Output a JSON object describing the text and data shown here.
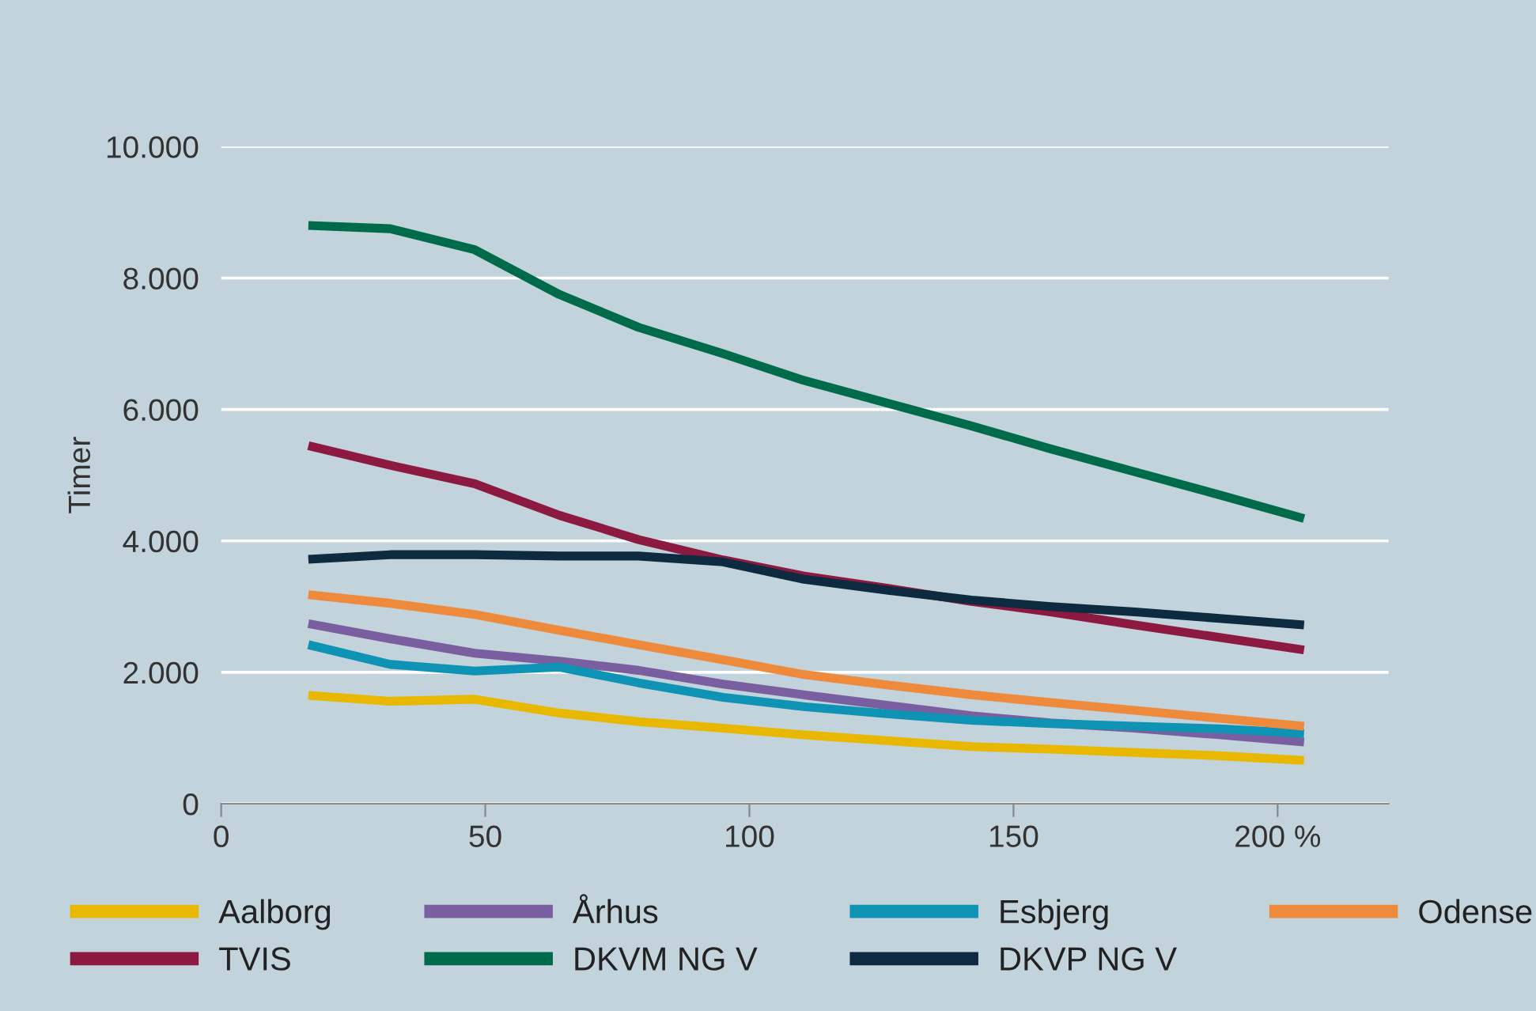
{
  "chart_data": {
    "type": "line",
    "ylabel": "Timer",
    "x": [
      16.5,
      32,
      48,
      64,
      79,
      95,
      110,
      126,
      142,
      157,
      173,
      189,
      205
    ],
    "xlim": [
      0,
      221
    ],
    "xticks": [
      0,
      50,
      100,
      150,
      {
        "value": 200,
        "label": "200 %"
      }
    ],
    "ylim": [
      0,
      10000
    ],
    "yticks": [
      0,
      {
        "value": 2000,
        "label": "2.000"
      },
      {
        "value": 4000,
        "label": "4.000"
      },
      {
        "value": 6000,
        "label": "6.000"
      },
      {
        "value": 8000,
        "label": "8.000"
      },
      {
        "value": 10000,
        "label": "10.000"
      }
    ],
    "grid": "y",
    "legend": "bottom",
    "marker": "none",
    "line_style": "solid",
    "series": [
      {
        "name": "Aalborg",
        "color": "#e8b800",
        "values": [
          1650,
          1560,
          1590,
          1380,
          1250,
          1150,
          1050,
          960,
          870,
          830,
          780,
          730,
          660
        ]
      },
      {
        "name": "Århus",
        "color": "#7a5fa0",
        "values": [
          2740,
          2510,
          2290,
          2170,
          2030,
          1820,
          1660,
          1500,
          1340,
          1230,
          1150,
          1050,
          940
        ]
      },
      {
        "name": "Esbjerg",
        "color": "#0f93b5",
        "values": [
          2420,
          2120,
          2020,
          2080,
          1840,
          1620,
          1480,
          1370,
          1270,
          1220,
          1180,
          1140,
          1070
        ]
      },
      {
        "name": "Odense",
        "color": "#ee8a3c",
        "values": [
          3180,
          3050,
          2880,
          2640,
          2420,
          2190,
          1970,
          1810,
          1660,
          1540,
          1420,
          1300,
          1180
        ]
      },
      {
        "name": "TVIS",
        "color": "#8c1a40",
        "values": [
          5450,
          5150,
          4870,
          4390,
          4020,
          3710,
          3470,
          3280,
          3080,
          2920,
          2720,
          2530,
          2340
        ]
      },
      {
        "name": "DKVM NG V",
        "color": "#006b4a",
        "values": [
          8800,
          8750,
          8430,
          7750,
          7250,
          6850,
          6450,
          6100,
          5750,
          5400,
          5050,
          4700,
          4340
        ]
      },
      {
        "name": "DKVP NG V",
        "color": "#0d2a40",
        "values": [
          3720,
          3790,
          3790,
          3770,
          3770,
          3680,
          3420,
          3250,
          3100,
          3000,
          2920,
          2820,
          2720
        ]
      }
    ]
  }
}
